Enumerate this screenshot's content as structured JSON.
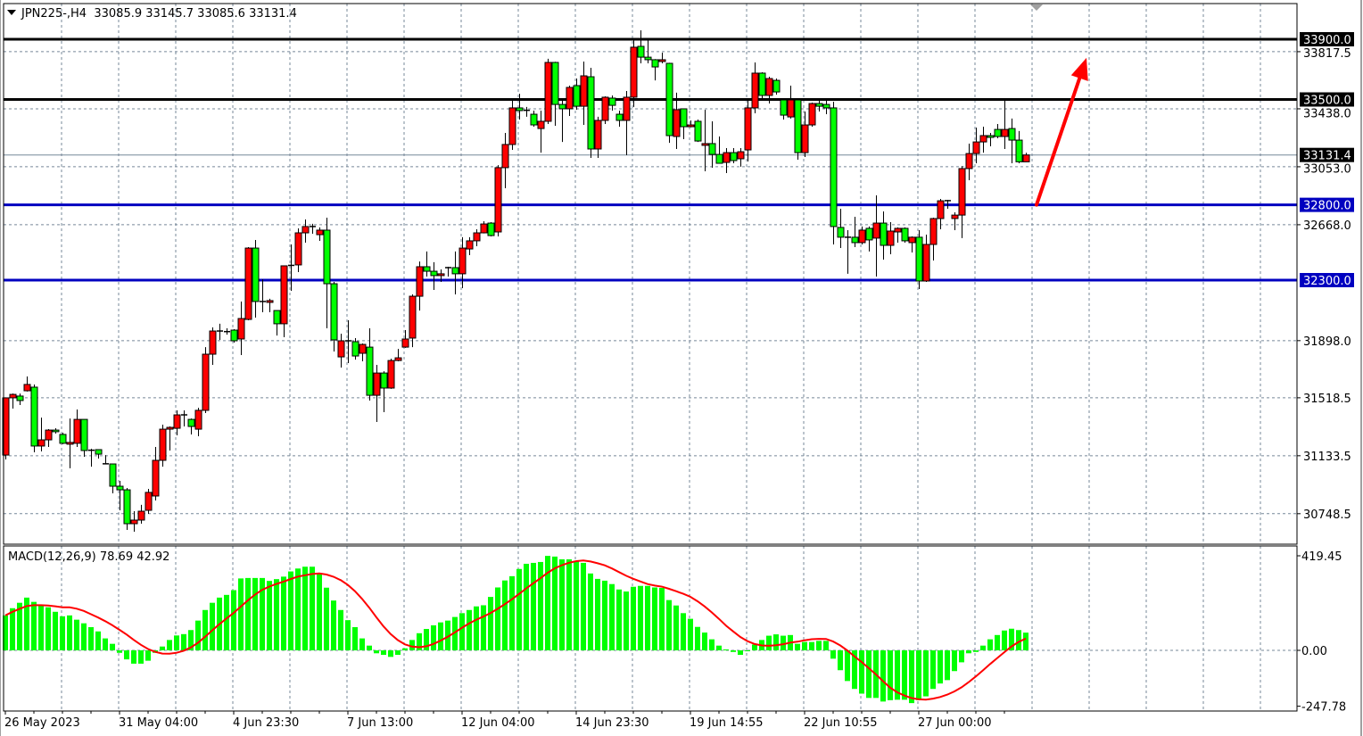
{
  "header": {
    "symbol": "JPN225-,H4",
    "open": "33085.9",
    "high": "33145.7",
    "low": "33085.6",
    "close": "33131.4"
  },
  "macd_header": {
    "label": "MACD(12,26,9)",
    "main": "78.69",
    "signal": "42.92"
  },
  "colors": {
    "bull": "#ff0000",
    "bear": "#00ff00",
    "outline": "#000000",
    "grid": "#778899",
    "hist": "#00ff00",
    "signal_line": "#ff0000",
    "arrow": "#ff0000"
  },
  "chart_data": [
    {
      "type": "candlestick",
      "symbol": "JPN225-",
      "timeframe": "H4",
      "ylim": [
        30640,
        33960
      ],
      "grid": true,
      "price_ticks": [
        "33817.5",
        "33438.0",
        "33053.0",
        "32668.0",
        "31898.0",
        "31518.5",
        "31133.5",
        "30748.5"
      ],
      "time_labels": [
        "26 May 2023",
        "31 May 04:00",
        "4 Jun 23:30",
        "7 Jun 13:00",
        "12 Jun 04:00",
        "14 Jun 23:30",
        "19 Jun 14:55",
        "22 Jun 10:55",
        "27 Jun 00:00"
      ],
      "levels": [
        {
          "price": 33900.0,
          "label": "33900.0",
          "color": "#000000"
        },
        {
          "price": 33500.0,
          "label": "33500.0",
          "color": "#000000"
        },
        {
          "price": 32800.0,
          "label": "32800.0",
          "color": "#0000c0"
        },
        {
          "price": 32300.0,
          "label": "32300.0",
          "color": "#0000c0"
        }
      ],
      "current_price": {
        "price": 33131.4,
        "label": "33131.4"
      },
      "arrow": {
        "from_price": 32800,
        "to_price": 33776,
        "direction": "up"
      },
      "candles_ohlc": [
        [
          31138,
          31518,
          31109,
          31518
        ],
        [
          31518,
          31547,
          31447,
          31541
        ],
        [
          31530,
          31547,
          31470,
          31500
        ],
        [
          31565,
          31660,
          31560,
          31607
        ],
        [
          31589,
          31607,
          31156,
          31198
        ],
        [
          31198,
          31387,
          31162,
          31239
        ],
        [
          31239,
          31310,
          31192,
          31304
        ],
        [
          31304,
          31316,
          31281,
          31293
        ],
        [
          31275,
          31287,
          31210,
          31216
        ],
        [
          31210,
          31381,
          31050,
          31222
        ],
        [
          31216,
          31441,
          31192,
          31375
        ],
        [
          31375,
          31375,
          31127,
          31168
        ],
        [
          31168,
          31180,
          31061,
          31170
        ],
        [
          31174,
          31174,
          31115,
          31144
        ],
        [
          31080,
          31138,
          31076,
          31079
        ],
        [
          31079,
          31079,
          30884,
          30931
        ],
        [
          30931,
          30967,
          30771,
          30907
        ],
        [
          30907,
          30919,
          30641,
          30682
        ],
        [
          30682,
          30765,
          30629,
          30706
        ],
        [
          30706,
          30807,
          30682,
          30765
        ],
        [
          30771,
          30913,
          30747,
          30890
        ],
        [
          30866,
          31192,
          30836,
          31103
        ],
        [
          31103,
          31340,
          31061,
          31310
        ],
        [
          31310,
          31328,
          31168,
          31322
        ],
        [
          31316,
          31435,
          31269,
          31405
        ],
        [
          31405,
          31435,
          31328,
          31399
        ],
        [
          31375,
          31381,
          31275,
          31328
        ],
        [
          31310,
          31452,
          31263,
          31435
        ],
        [
          31435,
          31855,
          31417,
          31808
        ],
        [
          31808,
          31986,
          31737,
          31962
        ],
        [
          31962,
          32010,
          31903,
          31956
        ],
        [
          31956,
          31980,
          31938,
          31958
        ],
        [
          31968,
          31974,
          31885,
          31897
        ],
        [
          31909,
          32158,
          31802,
          32045
        ],
        [
          32039,
          32519,
          32033,
          32513
        ],
        [
          32513,
          32567,
          32051,
          32158
        ],
        [
          32158,
          32306,
          32087,
          32152
        ],
        [
          32152,
          32176,
          32087,
          32164
        ],
        [
          32098,
          32098,
          31932,
          32010
        ],
        [
          32010,
          32395,
          31921,
          32395
        ],
        [
          32395,
          32537,
          32229,
          32398
        ],
        [
          32401,
          32644,
          32353,
          32614
        ],
        [
          32614,
          32703,
          32549,
          32656
        ],
        [
          32656,
          32674,
          32608,
          32650
        ],
        [
          32602,
          32650,
          32561,
          32632
        ],
        [
          32632,
          32715,
          31980,
          32276
        ],
        [
          32276,
          32288,
          31826,
          31903
        ],
        [
          31790,
          31944,
          31719,
          31897
        ],
        [
          31897,
          32033,
          31749,
          31891
        ],
        [
          31891,
          31915,
          31772,
          31796
        ],
        [
          31814,
          31879,
          31761,
          31873
        ],
        [
          31855,
          31980,
          31500,
          31535
        ],
        [
          31535,
          31737,
          31358,
          31683
        ],
        [
          31683,
          31695,
          31423,
          31583
        ],
        [
          31583,
          31778,
          31578,
          31766
        ],
        [
          31766,
          31843,
          31761,
          31784
        ],
        [
          31855,
          31968,
          31850,
          31909
        ],
        [
          31915,
          32205,
          31855,
          32193
        ],
        [
          32193,
          32424,
          32098,
          32389
        ],
        [
          32389,
          32490,
          32324,
          32359
        ],
        [
          32359,
          32419,
          32235,
          32330
        ],
        [
          32330,
          32371,
          32288,
          32342
        ],
        [
          32380,
          32389,
          32324,
          32383
        ],
        [
          32383,
          32490,
          32205,
          32342
        ],
        [
          32342,
          32585,
          32247,
          32513
        ],
        [
          32507,
          32585,
          32466,
          32561
        ],
        [
          32561,
          32638,
          32525,
          32614
        ],
        [
          32614,
          32691,
          32610,
          32673
        ],
        [
          32679,
          32685,
          32590,
          32596
        ],
        [
          32620,
          33064,
          32590,
          33047
        ],
        [
          33047,
          33278,
          32910,
          33201
        ],
        [
          33201,
          33497,
          33165,
          33444
        ],
        [
          33444,
          33538,
          33367,
          33426
        ],
        [
          33426,
          33450,
          33385,
          33428
        ],
        [
          33402,
          33426,
          33319,
          33331
        ],
        [
          33307,
          33426,
          33147,
          33355
        ],
        [
          33355,
          33770,
          33337,
          33746
        ],
        [
          33746,
          33750,
          33325,
          33467
        ],
        [
          33467,
          33503,
          33218,
          33438
        ],
        [
          33438,
          33592,
          33390,
          33580
        ],
        [
          33592,
          33639,
          33432,
          33455
        ],
        [
          33455,
          33752,
          33331,
          33657
        ],
        [
          33651,
          33710,
          33112,
          33171
        ],
        [
          33171,
          33385,
          33112,
          33361
        ],
        [
          33361,
          33521,
          33337,
          33515
        ],
        [
          33509,
          33527,
          33426,
          33461
        ],
        [
          33402,
          33426,
          33319,
          33361
        ],
        [
          33361,
          33556,
          33130,
          33515
        ],
        [
          33515,
          33894,
          33450,
          33847
        ],
        [
          33853,
          33959,
          33740,
          33781
        ],
        [
          33781,
          33894,
          33740,
          33764
        ],
        [
          33764,
          33768,
          33627,
          33716
        ],
        [
          33752,
          33811,
          33740,
          33764
        ],
        [
          33740,
          33744,
          33212,
          33260
        ],
        [
          33254,
          33545,
          33171,
          33432
        ],
        [
          33438,
          33440,
          33236,
          33319
        ],
        [
          33319,
          33361,
          33315,
          33331
        ],
        [
          33355,
          33367,
          33218,
          33224
        ],
        [
          33195,
          33432,
          33023,
          33207
        ],
        [
          33207,
          33355,
          33047,
          33135
        ],
        [
          33135,
          33254,
          33076,
          33076
        ],
        [
          33082,
          33177,
          33011,
          33147
        ],
        [
          33147,
          33177,
          33076,
          33094
        ],
        [
          33106,
          33177,
          33053,
          33153
        ],
        [
          33165,
          33497,
          33088,
          33444
        ],
        [
          33444,
          33746,
          33408,
          33675
        ],
        [
          33675,
          33681,
          33491,
          33527
        ],
        [
          33527,
          33651,
          33473,
          33639
        ],
        [
          33627,
          33639,
          33532,
          33550
        ],
        [
          33497,
          33509,
          33367,
          33396
        ],
        [
          33384,
          33592,
          33373,
          33497
        ],
        [
          33497,
          33509,
          33100,
          33147
        ],
        [
          33147,
          33420,
          33118,
          33331
        ],
        [
          33331,
          33479,
          33319,
          33473
        ],
        [
          33473,
          33491,
          33420,
          33455
        ],
        [
          33467,
          33503,
          33402,
          33444
        ],
        [
          33444,
          33485,
          32537,
          32656
        ],
        [
          32650,
          32774,
          32513,
          32585
        ],
        [
          32585,
          32632,
          32342,
          32583
        ],
        [
          32585,
          32721,
          32519,
          32549
        ],
        [
          32549,
          32656,
          32537,
          32632
        ],
        [
          32644,
          32656,
          32490,
          32567
        ],
        [
          32579,
          32863,
          32324,
          32679
        ],
        [
          32679,
          32756,
          32436,
          32531
        ],
        [
          32531,
          32685,
          32472,
          32626
        ],
        [
          32620,
          32650,
          32549,
          32644
        ],
        [
          32644,
          32650,
          32549,
          32561
        ],
        [
          32549,
          32590,
          32484,
          32585
        ],
        [
          32585,
          32632,
          32241,
          32294
        ],
        [
          32294,
          32602,
          32288,
          32537
        ],
        [
          32537,
          32715,
          32430,
          32709
        ],
        [
          32709,
          32839,
          32638,
          32827
        ],
        [
          32827,
          32833,
          32774,
          32828
        ],
        [
          32709,
          32750,
          32632,
          32732
        ],
        [
          32732,
          33058,
          32579,
          33041
        ],
        [
          33041,
          33207,
          32964,
          33141
        ],
        [
          33141,
          33313,
          33076,
          33218
        ],
        [
          33218,
          33319,
          33147,
          33260
        ],
        [
          33260,
          33278,
          33189,
          33248
        ],
        [
          33301,
          33337,
          33242,
          33254
        ],
        [
          33254,
          33509,
          33171,
          33301
        ],
        [
          33307,
          33373,
          33076,
          33230
        ],
        [
          33230,
          33290,
          33076,
          33086
        ],
        [
          33085.9,
          33145.7,
          33085.6,
          33131.4
        ]
      ]
    },
    {
      "type": "bar+line",
      "indicator": "MACD(12,26,9)",
      "ylim": [
        -247.78,
        419.45
      ],
      "ticks": [
        "419.45",
        "0.00",
        "-247.78"
      ],
      "signal_period": 9,
      "histogram": [
        155,
        187,
        211,
        234,
        215,
        200,
        191,
        171,
        151,
        155,
        136,
        120,
        103,
        84,
        53,
        29,
        -11,
        -40,
        -59,
        -59,
        -46,
        -11,
        17,
        46,
        66,
        72,
        90,
        132,
        179,
        211,
        234,
        246,
        267,
        319,
        321,
        321,
        321,
        308,
        316,
        327,
        350,
        363,
        371,
        371,
        342,
        278,
        221,
        179,
        134,
        103,
        53,
        21,
        -13,
        -20,
        -29,
        -20,
        9,
        46,
        76,
        95,
        111,
        124,
        132,
        148,
        165,
        179,
        195,
        200,
        237,
        279,
        310,
        329,
        361,
        384,
        388,
        392,
        419,
        416,
        404,
        404,
        395,
        388,
        341,
        317,
        309,
        294,
        270,
        261,
        282,
        286,
        286,
        279,
        277,
        223,
        199,
        165,
        140,
        104,
        79,
        49,
        21,
        4,
        -7,
        -20,
        -3,
        26,
        46,
        65,
        71,
        65,
        68,
        29,
        37,
        37,
        42,
        42,
        -37,
        -88,
        -136,
        -171,
        -192,
        -211,
        -211,
        -227,
        -221,
        -219,
        -219,
        -234,
        -221,
        -204,
        -171,
        -147,
        -132,
        -92,
        -53,
        -13,
        -7,
        21,
        49,
        68,
        88,
        96,
        90,
        78.69
      ]
    }
  ]
}
